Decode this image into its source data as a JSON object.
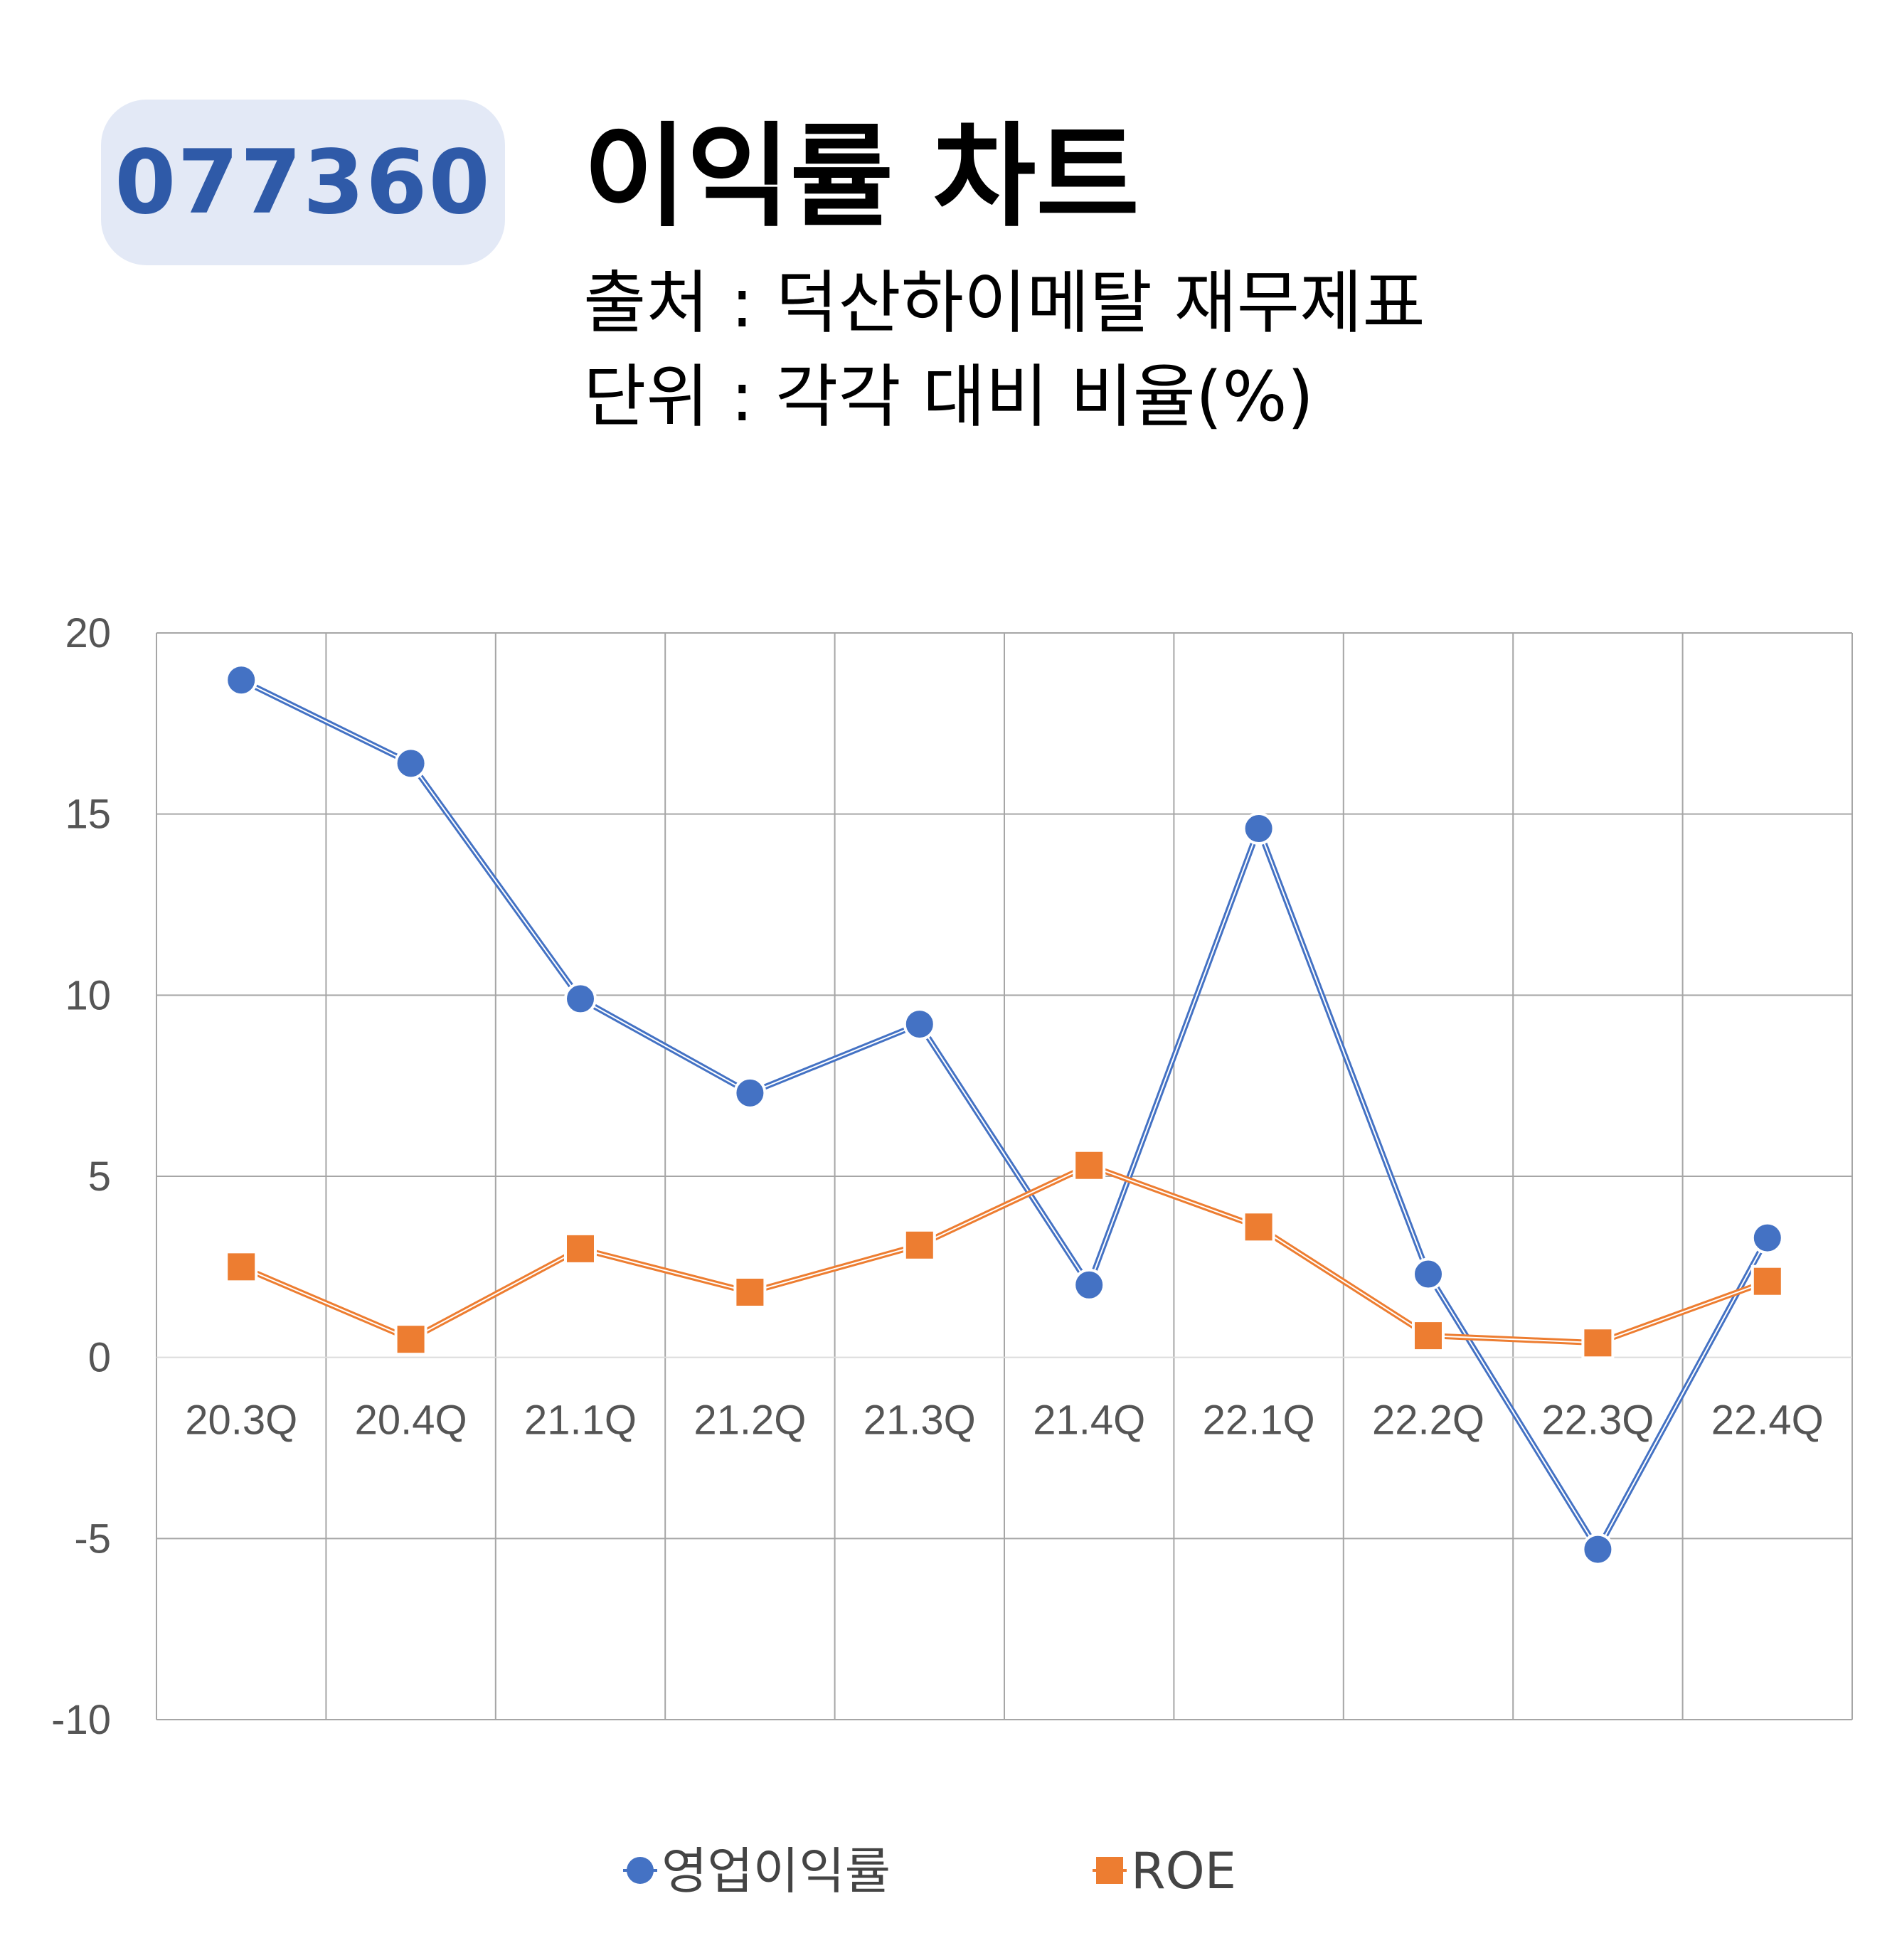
{
  "header": {
    "ticker": "077360",
    "title": "이익률 차트",
    "source": "출처 : 덕산하이메탈 재무제표",
    "unit": "단위 : 각각 대비 비율(%)"
  },
  "chart_data": {
    "type": "line",
    "categories": [
      "20.3Q",
      "20.4Q",
      "21.1Q",
      "21.2Q",
      "21.3Q",
      "21.4Q",
      "22.1Q",
      "22.2Q",
      "22.3Q",
      "22.4Q"
    ],
    "series": [
      {
        "name": "영업이익률",
        "marker": "circle",
        "color": "#4472c4",
        "values": [
          18.7,
          16.4,
          9.9,
          7.3,
          9.2,
          2.0,
          14.6,
          2.3,
          -5.3,
          3.3
        ]
      },
      {
        "name": "ROE",
        "marker": "square",
        "color": "#ed7d31",
        "values": [
          2.5,
          0.5,
          3.0,
          1.8,
          3.1,
          5.3,
          3.6,
          0.6,
          0.4,
          2.1
        ]
      }
    ],
    "ylim": [
      -10,
      20
    ],
    "yticks": [
      -10,
      -5,
      0,
      5,
      10,
      15,
      20
    ],
    "grid": true,
    "legend_position": "bottom"
  }
}
